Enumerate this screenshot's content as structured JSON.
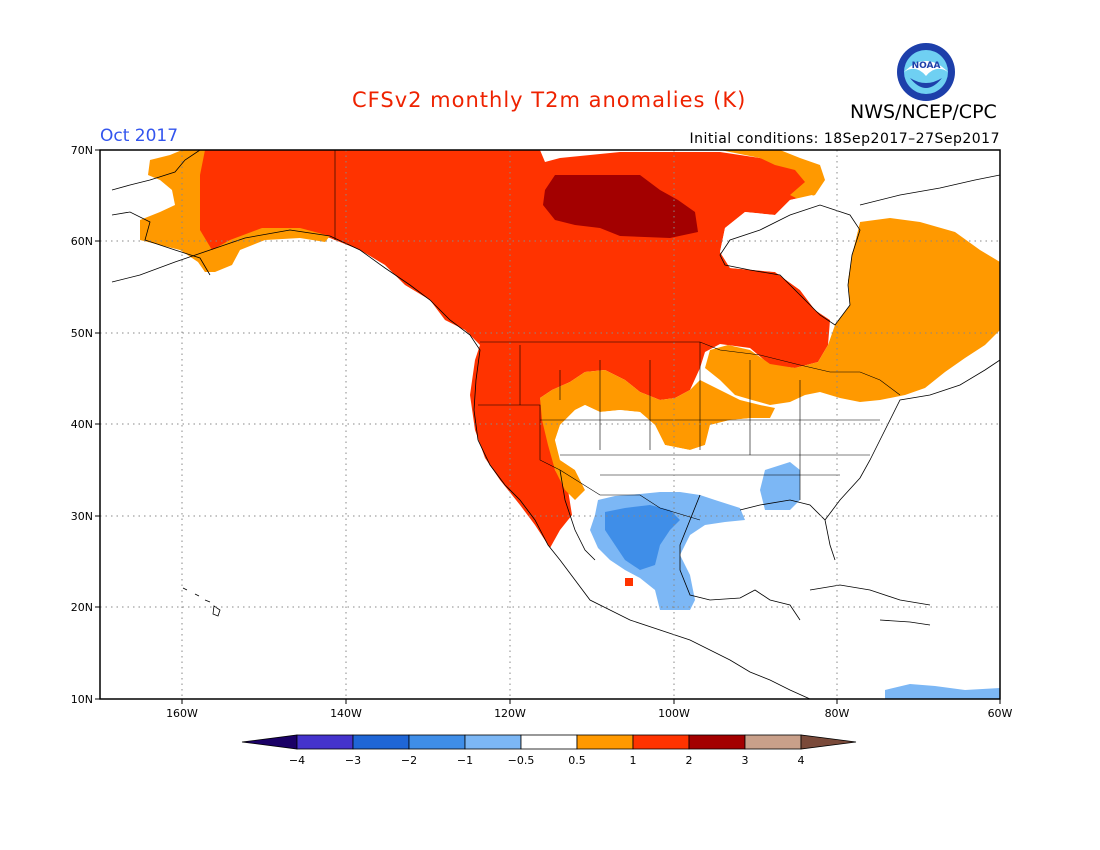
{
  "header": {
    "title": "CFSv2 monthly T2m anomalies (K)",
    "valid_month": "Oct 2017",
    "initial_conditions": "Initial conditions: 18Sep2017–27Sep2017",
    "agency": "NWS/NCEP/CPC",
    "logo_icon": "noaa-logo-icon",
    "logo_text": "NOAA"
  },
  "map": {
    "lon_range": [
      -170,
      -60
    ],
    "lat_range": [
      10,
      70
    ],
    "lat_labels": [
      "10N",
      "20N",
      "30N",
      "40N",
      "50N",
      "60N",
      "70N"
    ],
    "lon_labels": [
      "160W",
      "140W",
      "120W",
      "100W",
      "80W",
      "60W"
    ],
    "grid": true
  },
  "colorbar": {
    "tick_labels": [
      "−4",
      "−3",
      "−2",
      "−1",
      "−0.5",
      "0.5",
      "1",
      "2",
      "3",
      "4"
    ],
    "colors": [
      "#1a0066",
      "#4433cc",
      "#1f66d6",
      "#3f8ee8",
      "#7cb7f5",
      "#ffffff",
      "#ff9900",
      "#ff3300",
      "#a30000",
      "#c9a08a",
      "#7a4a3a"
    ]
  }
}
